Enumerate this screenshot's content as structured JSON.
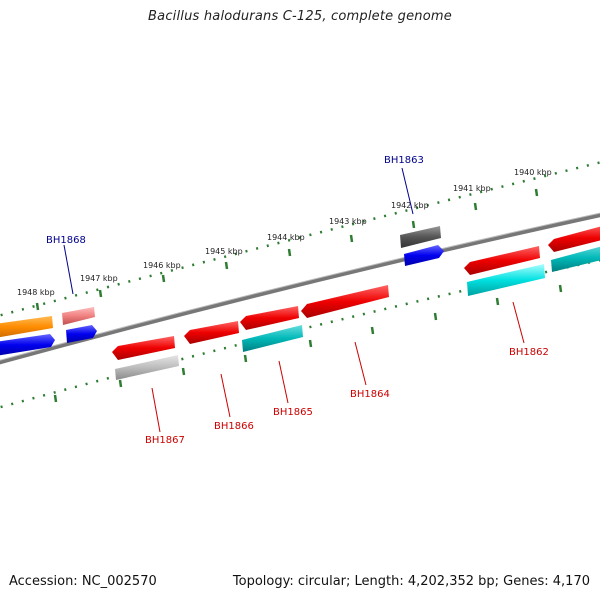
{
  "title": "Bacillus halodurans C-125, complete genome",
  "footer": {
    "accession": "Accession: NC_002570",
    "summary": "Topology: circular; Length: 4,202,352 bp; Genes: 4,170"
  },
  "scale_labels": [
    "1948 kbp",
    "1947 kbp",
    "1946 kbp",
    "1945 kbp",
    "1944 kbp",
    "1943 kbp",
    "1942 kbp",
    "1941 kbp",
    "1940 kbp"
  ],
  "gene_labels": [
    "BH1868",
    "BH1863",
    "BH1867",
    "BH1866",
    "BH1865",
    "BH1864",
    "BH1862"
  ],
  "colors": {
    "backbone": "#777777",
    "tick": "#2e7d32",
    "label_blue": "#00008b",
    "label_red": "#cc0000",
    "orange": "#ff8c00",
    "red": "#ee0000",
    "salmon": "#f08080",
    "blue": "#0000ee",
    "cyan": "#00d8d8",
    "gray": "#b0b0b0",
    "dark_gray": "#555555"
  }
}
